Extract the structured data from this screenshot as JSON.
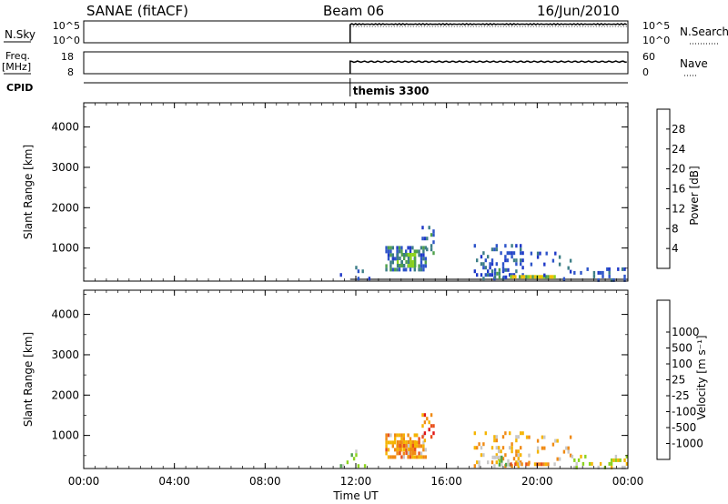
{
  "header": {
    "title": "SANAE (fitACF)",
    "beam": "Beam 06",
    "date": "16/Jun/2010"
  },
  "info_panels": {
    "nsky": {
      "label": "N.Sky",
      "left_ticks": [
        "10^5",
        "10^0"
      ],
      "right_ticks": [
        "10^5",
        "10^0"
      ],
      "right_label": "N.Search",
      "trace_start_ut": 11.75,
      "trace_level": 0.85,
      "search_level": 0.85
    },
    "freq": {
      "label_line1": "Freq.",
      "label_line2": "[MHz]",
      "left_ticks": [
        "18",
        "8"
      ],
      "right_ticks": [
        "60",
        "0"
      ],
      "right_label": "Nave",
      "trace_start_ut": 11.75,
      "trace_level": 0.55
    },
    "cpid": {
      "label": "CPID",
      "marker_ut": 11.75,
      "program": "themis 3300"
    }
  },
  "colors": {
    "power_scale": [
      "#1f38c8",
      "#2d54c9",
      "#3d7e86",
      "#4fa14a",
      "#8cd31e",
      "#f0c000",
      "#f09a00",
      "#e8641a",
      "#e84020",
      "#e81010"
    ],
    "velocity_scale": [
      "#e01414",
      "#e8501c",
      "#f08a14",
      "#f5b400",
      "#c8c8c8",
      "#8cd31e",
      "#4fa14a",
      "#3d6fa0",
      "#2d54c9",
      "#1f38c8"
    ],
    "ground_scatter": "#777777"
  },
  "chart_data": [
    {
      "type": "heatmap",
      "name": "power",
      "xlabel": "",
      "ylabel": "Slant Range [km]",
      "xlim": [
        0,
        24
      ],
      "ylim": [
        180,
        4600
      ],
      "yticks": [
        "1000",
        "2000",
        "3000",
        "4000"
      ],
      "ytick_values": [
        1000,
        2000,
        3000,
        4000
      ],
      "colorbar": {
        "label": "Power [dB]",
        "range": [
          0,
          32
        ],
        "tick_values": [
          4,
          8,
          12,
          16,
          20,
          24,
          28
        ],
        "tick_labels": [
          "4",
          "8",
          "12",
          "16",
          "20",
          "24",
          "28"
        ]
      },
      "ground_scatter_ut": [
        11.75,
        24
      ],
      "regions": [
        {
          "ut": [
            13.3,
            15.1
          ],
          "range": [
            430,
            1050
          ],
          "level": 0.22,
          "density": 0.55
        },
        {
          "ut": [
            13.8,
            14.6
          ],
          "range": [
            560,
            880
          ],
          "level": 0.35,
          "density": 0.75
        },
        {
          "ut": [
            14.9,
            15.4
          ],
          "range": [
            900,
            1550
          ],
          "level": 0.18,
          "density": 0.35
        },
        {
          "ut": [
            11.2,
            12.6
          ],
          "range": [
            260,
            650
          ],
          "level": 0.15,
          "density": 0.12
        },
        {
          "ut": [
            17.2,
            19.4
          ],
          "range": [
            250,
            1100
          ],
          "level": 0.15,
          "density": 0.28
        },
        {
          "ut": [
            18.0,
            18.8
          ],
          "range": [
            250,
            500
          ],
          "level": 0.22,
          "density": 0.5
        },
        {
          "ut": [
            18.8,
            20.8
          ],
          "range": [
            240,
            330
          ],
          "level": 0.45,
          "density": 0.85
        },
        {
          "ut": [
            19.5,
            21.5
          ],
          "range": [
            240,
            1000
          ],
          "level": 0.15,
          "density": 0.12
        },
        {
          "ut": [
            21.5,
            24.0
          ],
          "range": [
            240,
            520
          ],
          "level": 0.15,
          "density": 0.2
        }
      ]
    },
    {
      "type": "heatmap",
      "name": "velocity",
      "xlabel": "Time UT",
      "ylabel": "Slant Range [km]",
      "xlim": [
        0,
        24
      ],
      "ylim": [
        180,
        4600
      ],
      "xticks": [
        "00:00",
        "04:00",
        "08:00",
        "12:00",
        "16:00",
        "20:00",
        "00:00"
      ],
      "xtick_values": [
        0,
        4,
        8,
        12,
        16,
        20,
        24
      ],
      "yticks": [
        "1000",
        "2000",
        "3000",
        "4000"
      ],
      "ytick_values": [
        1000,
        2000,
        3000,
        4000
      ],
      "colorbar": {
        "label": "Velocity [m s⁻¹]",
        "tick_labels": [
          "-1000",
          "-500",
          "-100",
          "-25",
          "25",
          "100",
          "500",
          "1000"
        ]
      },
      "regions": [
        {
          "ut": [
            13.3,
            15.1
          ],
          "range": [
            430,
            1050
          ],
          "level": 0.3,
          "density": 0.55
        },
        {
          "ut": [
            13.8,
            14.6
          ],
          "range": [
            560,
            880
          ],
          "level": 0.28,
          "density": 0.75
        },
        {
          "ut": [
            14.9,
            15.4
          ],
          "range": [
            900,
            1550
          ],
          "level": 0.2,
          "density": 0.35
        },
        {
          "ut": [
            11.2,
            12.6
          ],
          "range": [
            260,
            650
          ],
          "level": 0.5,
          "density": 0.12
        },
        {
          "ut": [
            17.2,
            19.4
          ],
          "range": [
            250,
            1100
          ],
          "level": 0.35,
          "density": 0.28
        },
        {
          "ut": [
            18.0,
            18.8
          ],
          "range": [
            250,
            500
          ],
          "level": 0.55,
          "density": 0.5
        },
        {
          "ut": [
            18.8,
            20.8
          ],
          "range": [
            240,
            330
          ],
          "level": 0.3,
          "density": 0.85
        },
        {
          "ut": [
            19.5,
            21.5
          ],
          "range": [
            240,
            1000
          ],
          "level": 0.35,
          "density": 0.12
        },
        {
          "ut": [
            21.5,
            24.0
          ],
          "range": [
            240,
            520
          ],
          "level": 0.45,
          "density": 0.2
        }
      ]
    }
  ]
}
